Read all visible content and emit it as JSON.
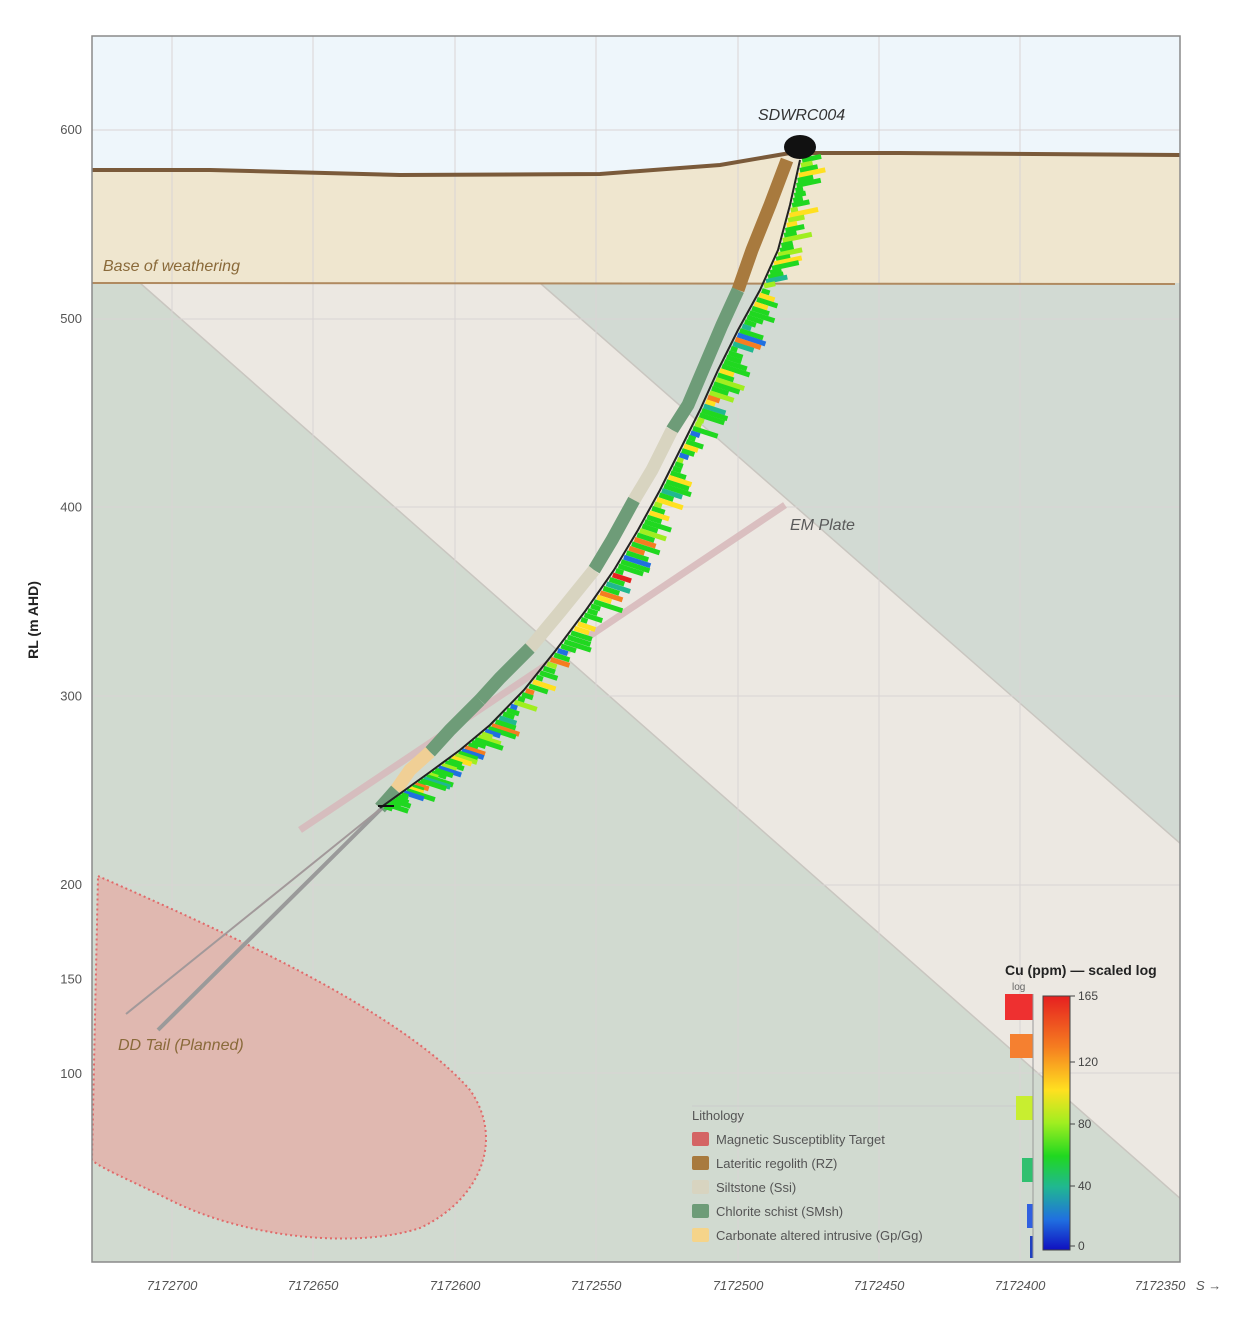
{
  "chart_data": {
    "type": "cross-section",
    "ylabel": "RL (m AHD)",
    "yticks": [
      100,
      150,
      200,
      300,
      400,
      500,
      600
    ],
    "xticks": [
      "7172700",
      "7172650",
      "7172600",
      "7172550",
      "7172500",
      "7172450",
      "7172400",
      "7172350"
    ],
    "x_axis_suffix": "S →",
    "ylim": [
      100,
      645
    ],
    "xlim": [
      7172722,
      7172339
    ],
    "annotations": {
      "hole_name": "SDWRC004",
      "weathering": "Base of weathering",
      "em_plate": "EM Plate",
      "dd_tail": "DD Tail (Planned)"
    },
    "hole_collar": {
      "x": 7172480,
      "rl": 592
    },
    "base_of_weathering_rl": 519,
    "drill_trace": [
      {
        "x": 7172480,
        "rl": 592
      },
      {
        "x": 7172486,
        "rl": 560
      },
      {
        "x": 7172494,
        "rl": 520
      },
      {
        "x": 7172510,
        "rl": 480
      },
      {
        "x": 7172528,
        "rl": 440
      },
      {
        "x": 7172546,
        "rl": 400
      },
      {
        "x": 7172564,
        "rl": 360
      },
      {
        "x": 7172582,
        "rl": 320
      },
      {
        "x": 7172604,
        "rl": 280
      },
      {
        "x": 7172626,
        "rl": 245
      }
    ],
    "legend": {
      "title": "Lithology",
      "items": [
        {
          "label": "Magnetic Susceptiblity Target",
          "color": "#d46464"
        },
        {
          "label": "Lateritic regolith (RZ)",
          "color": "#a87a3e"
        },
        {
          "label": "Siltstone (Ssi)",
          "color": "#d8d4c0"
        },
        {
          "label": "Chlorite schist (SMsh)",
          "color": "#6e9c78"
        },
        {
          "label": "Carbonate altered intrusive (Gp/Gg)",
          "color": "#f5d48a"
        }
      ]
    },
    "colorbar": {
      "title": "Cu (ppm) — scaled log",
      "sub": "log",
      "ticks": [
        "165",
        "120",
        "80",
        "40",
        "0"
      ],
      "colors": [
        "#e62020",
        "#f57d20",
        "#ffe020",
        "#a0ee20",
        "#20d820",
        "#20b890",
        "#2070e0",
        "#1010c0"
      ]
    },
    "colors": {
      "sky": "#eef6fb",
      "weathered_zone": "#efe6cf",
      "fresh_rock": "#e1e4dc",
      "green_band": "#cdd6cc",
      "pale_band": "#ece8e2",
      "surface": "#7a5a3a",
      "target_fill": "#e0b8b0",
      "target_edge": "#e06a6a"
    }
  }
}
